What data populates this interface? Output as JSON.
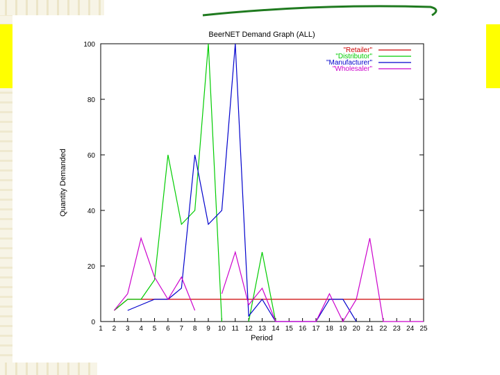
{
  "chart_data": {
    "type": "line",
    "title": "BeerNET Demand Graph (ALL)",
    "xlabel": "Period",
    "ylabel": "Quantity Demanded",
    "x": [
      1,
      2,
      3,
      4,
      5,
      6,
      7,
      8,
      9,
      10,
      11,
      12,
      13,
      14,
      15,
      16,
      17,
      18,
      19,
      20,
      21,
      22,
      23,
      24,
      25
    ],
    "xlim": [
      1,
      25
    ],
    "ylim": [
      0,
      100
    ],
    "yticks": [
      "0",
      "20",
      "40",
      "60",
      "80",
      "100"
    ],
    "xticks": [
      "1",
      "2",
      "3",
      "4",
      "5",
      "6",
      "7",
      "8",
      "9",
      "10",
      "11",
      "12",
      "13",
      "14",
      "15",
      "16",
      "17",
      "18",
      "19",
      "20",
      "21",
      "22",
      "23",
      "24",
      "25"
    ],
    "legend_position": "top-right",
    "series": [
      {
        "name": "\"Retailer\"",
        "color": "#cc0000",
        "points": [
          [
            2,
            4
          ],
          [
            3,
            8
          ],
          [
            4,
            8
          ],
          [
            5,
            8
          ],
          [
            6,
            8
          ],
          [
            7,
            8
          ],
          [
            8,
            8
          ],
          [
            9,
            8
          ],
          [
            10,
            8
          ],
          [
            11,
            8
          ],
          [
            12,
            8
          ],
          [
            13,
            8
          ],
          [
            14,
            8
          ],
          [
            15,
            8
          ],
          [
            16,
            8
          ],
          [
            17,
            8
          ],
          [
            18,
            8
          ],
          [
            19,
            8
          ],
          [
            20,
            8
          ],
          [
            21,
            8
          ],
          [
            22,
            8
          ],
          [
            23,
            8
          ],
          [
            24,
            8
          ],
          [
            25,
            8
          ]
        ]
      },
      {
        "name": "\"Distributor\"",
        "color": "#00cc00",
        "points": [
          [
            2,
            4
          ],
          [
            3,
            8
          ],
          [
            4,
            8
          ],
          [
            5,
            15
          ],
          [
            6,
            60
          ],
          [
            7,
            35
          ],
          [
            8,
            40
          ],
          [
            9,
            100
          ],
          [
            10,
            0
          ],
          [
            11,
            null
          ],
          [
            12,
            0
          ],
          [
            13,
            25
          ],
          [
            14,
            0
          ]
        ]
      },
      {
        "name": "\"Manufacturer\"",
        "color": "#0000cc",
        "points": [
          [
            3,
            4
          ],
          [
            4,
            6
          ],
          [
            5,
            8
          ],
          [
            6,
            8
          ],
          [
            7,
            12
          ],
          [
            8,
            60
          ],
          [
            9,
            35
          ],
          [
            10,
            40
          ],
          [
            11,
            100
          ],
          [
            12,
            2
          ],
          [
            13,
            8
          ],
          [
            14,
            0
          ],
          [
            15,
            0
          ],
          [
            16,
            0
          ],
          [
            17,
            0
          ],
          [
            18,
            8
          ],
          [
            19,
            8
          ],
          [
            20,
            0
          ]
        ]
      },
      {
        "name": "\"Wholesaler\"",
        "color": "#cc00cc",
        "points": [
          [
            2,
            4
          ],
          [
            3,
            10
          ],
          [
            4,
            30
          ],
          [
            5,
            16
          ],
          [
            6,
            8
          ],
          [
            7,
            16
          ],
          [
            8,
            4
          ],
          [
            9,
            null
          ],
          [
            10,
            10
          ],
          [
            11,
            25
          ],
          [
            12,
            6
          ],
          [
            13,
            12
          ],
          [
            14,
            0
          ],
          [
            15,
            0
          ],
          [
            16,
            0
          ],
          [
            17,
            0
          ],
          [
            18,
            10
          ],
          [
            19,
            0
          ],
          [
            20,
            8
          ],
          [
            21,
            30
          ],
          [
            22,
            0
          ],
          [
            23,
            0
          ],
          [
            24,
            0
          ],
          [
            25,
            0
          ]
        ]
      }
    ]
  }
}
